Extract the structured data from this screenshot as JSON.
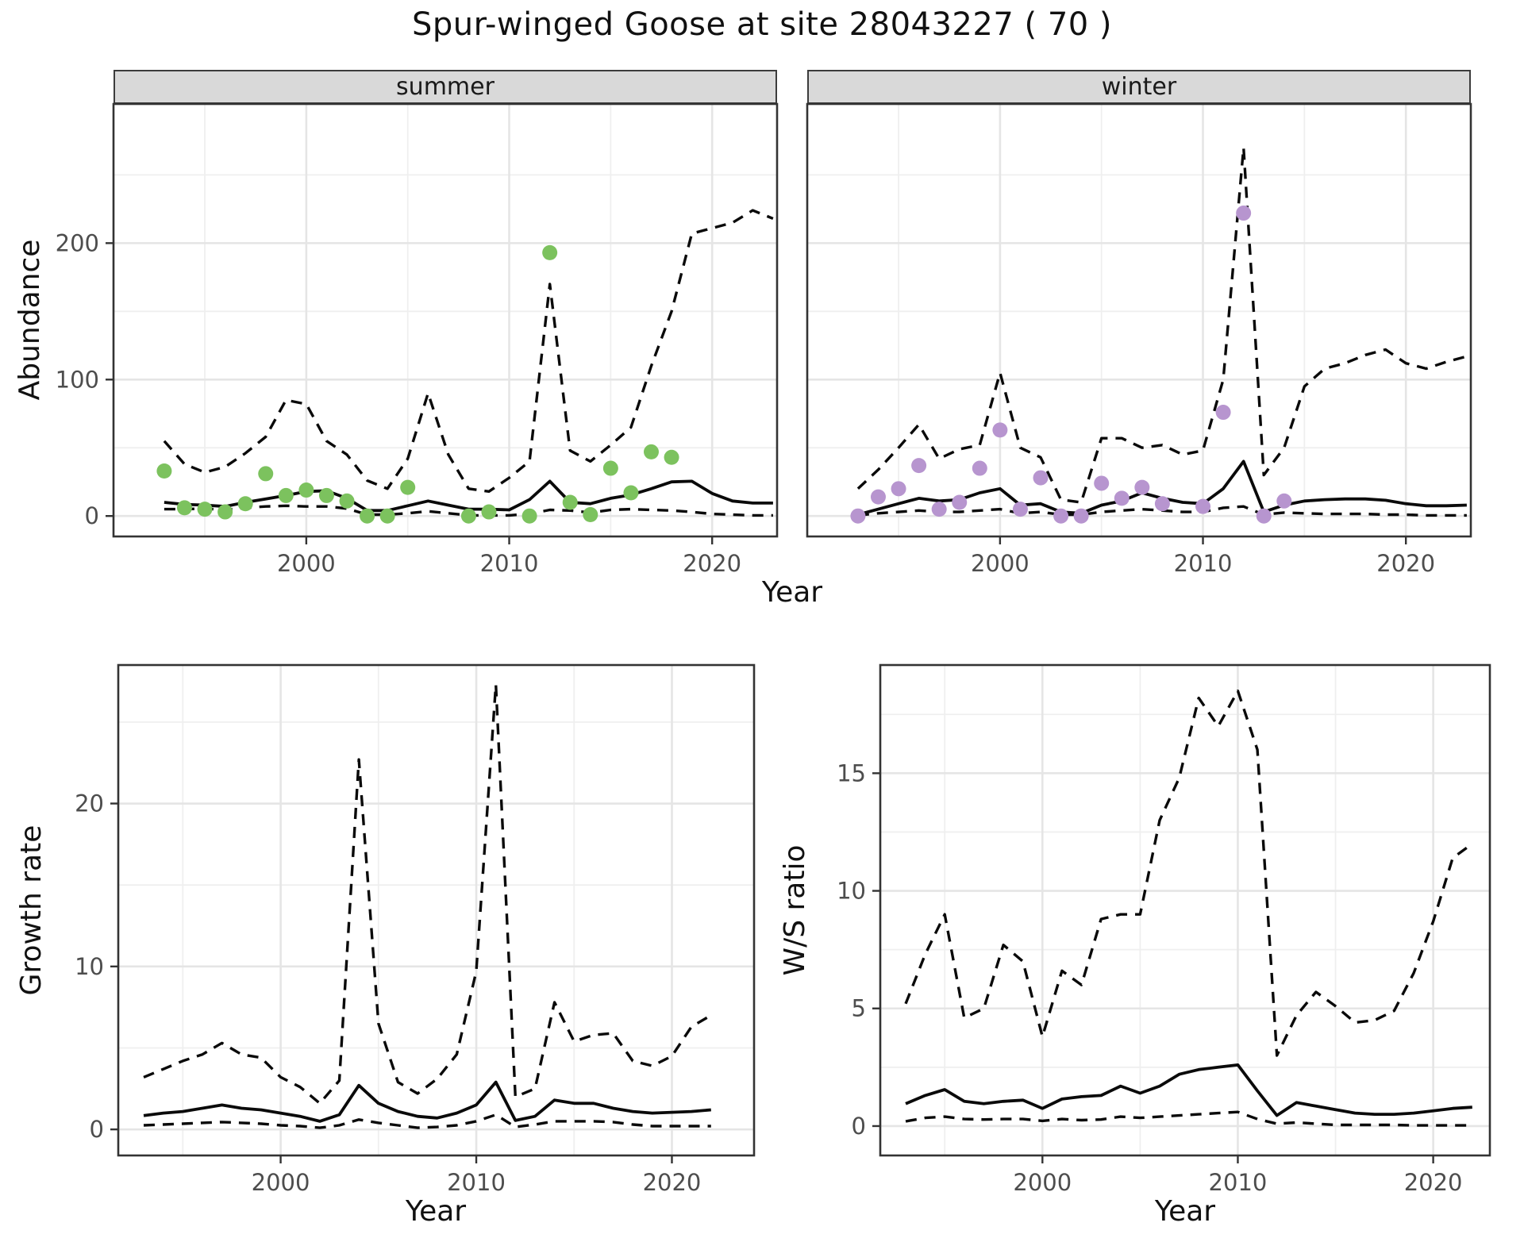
{
  "page": {
    "title": "Spur-winged Goose at site 28043227 ( 70 )"
  },
  "facets": {
    "summer": "summer",
    "winter": "winter"
  },
  "axes": {
    "abundance": "Abundance",
    "year": "Year",
    "growth_rate": "Growth rate",
    "ws_ratio": "W/S ratio"
  },
  "colors": {
    "summer_points": "#7cc25e",
    "winter_points": "#b795cf",
    "line": "#0a0a0a",
    "grid_major": "#e5e5e5",
    "grid_minor": "#efefef",
    "panel_border": "#333333",
    "strip_bg": "#d9d9d9",
    "tick_label": "#4d4d4d"
  },
  "chart_data": [
    {
      "id": "abundance-summer",
      "type": "line",
      "facet_label": "summer",
      "xlabel": "Year",
      "ylabel": "Abundance",
      "xlim": [
        1990.5,
        2023.2
      ],
      "ylim": [
        -15,
        302
      ],
      "x_ticks": [
        2000,
        2010,
        2020
      ],
      "x_minor": [
        1995,
        2005,
        2015
      ],
      "y_ticks": [
        0,
        100,
        200
      ],
      "y_minor": [
        50,
        150,
        250
      ],
      "show_y_tick_labels": true,
      "x": [
        1993,
        1994,
        1995,
        1996,
        1997,
        1998,
        1999,
        2000,
        2001,
        2002,
        2003,
        2004,
        2005,
        2006,
        2007,
        2008,
        2009,
        2010,
        2011,
        2012,
        2013,
        2014,
        2015,
        2016,
        2017,
        2018,
        2019,
        2020,
        2021,
        2022,
        2023
      ],
      "series": [
        {
          "name": "median",
          "style": "solid",
          "values": [
            10,
            8.5,
            8,
            7,
            10,
            12.5,
            15,
            18,
            18.5,
            13,
            4,
            4,
            7.5,
            11,
            8,
            5,
            5,
            4.5,
            12,
            25.5,
            10,
            9,
            13,
            15.5,
            20,
            25,
            25.5,
            16.5,
            11,
            9.5,
            9.5
          ]
        },
        {
          "name": "lower95",
          "style": "dashed",
          "values": [
            5,
            5,
            5.5,
            4.5,
            6,
            7,
            7.5,
            7,
            7,
            5.5,
            1,
            1,
            2,
            3.5,
            2,
            0.5,
            0.5,
            0.5,
            1.5,
            4.5,
            4,
            2.5,
            4.5,
            5,
            4.5,
            4,
            3,
            1.5,
            1,
            0.5,
            0.5
          ]
        },
        {
          "name": "upper95",
          "style": "dashed",
          "values": [
            55,
            38,
            32,
            36,
            46,
            58,
            85,
            82,
            55,
            45,
            26,
            20,
            42,
            90,
            45,
            20,
            18,
            28,
            40,
            170,
            48,
            40,
            52,
            65,
            110,
            150,
            207,
            211,
            215,
            224,
            218
          ]
        }
      ],
      "points": {
        "name": "observed-counts",
        "color": "#7cc25e",
        "years": [
          1993,
          1994,
          1995,
          1996,
          1997,
          1998,
          1999,
          2000,
          2001,
          2002,
          2003,
          2004,
          2005,
          2008,
          2009,
          2011,
          2012,
          2013,
          2014,
          2015,
          2016,
          2017,
          2018
        ],
        "values": [
          33,
          6,
          5,
          3,
          9,
          31,
          15,
          19,
          15,
          11,
          0,
          0,
          21,
          0,
          3,
          0,
          193,
          10,
          1,
          35,
          17,
          47,
          43
        ]
      }
    },
    {
      "id": "abundance-winter",
      "type": "line",
      "facet_label": "winter",
      "xlabel": "Year",
      "ylabel": "Abundance",
      "xlim": [
        1990.5,
        2023.2
      ],
      "ylim": [
        -15,
        302
      ],
      "x_ticks": [
        2000,
        2010,
        2020
      ],
      "x_minor": [
        1995,
        2005,
        2015
      ],
      "y_ticks": [
        0,
        100,
        200
      ],
      "y_minor": [
        50,
        150,
        250
      ],
      "show_y_tick_labels": false,
      "x": [
        1993,
        1994,
        1995,
        1996,
        1997,
        1998,
        1999,
        2000,
        2001,
        2002,
        2003,
        2004,
        2005,
        2006,
        2007,
        2008,
        2009,
        2010,
        2011,
        2012,
        2013,
        2014,
        2015,
        2016,
        2017,
        2018,
        2019,
        2020,
        2021,
        2022,
        2023
      ],
      "series": [
        {
          "name": "median",
          "style": "solid",
          "values": [
            1,
            5,
            9,
            13,
            11,
            12,
            17,
            20,
            8,
            9,
            3,
            2,
            8,
            11,
            17,
            13,
            10,
            9,
            20,
            40,
            3,
            8,
            11,
            12,
            12.5,
            12.5,
            11.5,
            9,
            7.5,
            7.5,
            8
          ]
        },
        {
          "name": "lower95",
          "style": "dashed",
          "values": [
            0.5,
            2,
            3,
            4,
            3,
            3,
            4,
            5,
            2,
            3,
            1,
            1,
            3,
            4,
            5,
            4,
            3,
            3,
            6,
            7,
            1,
            2.5,
            2,
            1.5,
            1.5,
            1.5,
            1,
            1,
            0.5,
            0.5,
            0.5
          ]
        },
        {
          "name": "upper95",
          "style": "dashed",
          "values": [
            20,
            34,
            50,
            67,
            42,
            49,
            52,
            105,
            50,
            43,
            12,
            10,
            57,
            57,
            50,
            52,
            45,
            48,
            100,
            270,
            30,
            50,
            95,
            108,
            112,
            118,
            122,
            112,
            108,
            113,
            117
          ]
        }
      ],
      "points": {
        "name": "observed-counts",
        "color": "#b795cf",
        "years": [
          1993,
          1994,
          1995,
          1996,
          1997,
          1998,
          1999,
          2000,
          2001,
          2002,
          2003,
          2004,
          2005,
          2006,
          2007,
          2008,
          2010,
          2011,
          2012,
          2013,
          2014
        ],
        "values": [
          0,
          14,
          20,
          37,
          5,
          10,
          35,
          63,
          5,
          28,
          0,
          0,
          24,
          13,
          21,
          9,
          7,
          76,
          222,
          0,
          11
        ]
      }
    },
    {
      "id": "growth-rate",
      "type": "line",
      "facet_label": "",
      "xlabel": "Year",
      "ylabel": "Growth rate",
      "xlim": [
        1991.7,
        2024.2
      ],
      "ylim": [
        -1.6,
        28.5
      ],
      "x_ticks": [
        2000,
        2010,
        2020
      ],
      "x_minor": [
        1995,
        2005,
        2015
      ],
      "y_ticks": [
        0,
        10,
        20
      ],
      "y_minor": [
        5,
        15,
        25
      ],
      "show_y_tick_labels": true,
      "x": [
        1993,
        1994,
        1995,
        1996,
        1997,
        1998,
        1999,
        2000,
        2001,
        2002,
        2003,
        2004,
        2005,
        2006,
        2007,
        2008,
        2009,
        2010,
        2011,
        2012,
        2013,
        2014,
        2015,
        2016,
        2017,
        2018,
        2019,
        2020,
        2021,
        2022
      ],
      "series": [
        {
          "name": "median",
          "style": "solid",
          "values": [
            0.85,
            1.0,
            1.1,
            1.3,
            1.5,
            1.3,
            1.2,
            1.0,
            0.8,
            0.5,
            0.9,
            2.7,
            1.6,
            1.1,
            0.8,
            0.7,
            1.0,
            1.5,
            2.9,
            0.55,
            0.8,
            1.8,
            1.6,
            1.6,
            1.3,
            1.1,
            1.0,
            1.05,
            1.1,
            1.2
          ]
        },
        {
          "name": "lower95",
          "style": "dashed",
          "values": [
            0.25,
            0.3,
            0.35,
            0.4,
            0.45,
            0.4,
            0.35,
            0.25,
            0.2,
            0.1,
            0.25,
            0.6,
            0.4,
            0.25,
            0.1,
            0.15,
            0.25,
            0.5,
            0.9,
            0.15,
            0.3,
            0.5,
            0.5,
            0.5,
            0.45,
            0.3,
            0.2,
            0.2,
            0.2,
            0.2
          ]
        },
        {
          "name": "upper95",
          "style": "dashed",
          "values": [
            3.2,
            3.7,
            4.2,
            4.6,
            5.3,
            4.6,
            4.4,
            3.2,
            2.6,
            1.6,
            3.0,
            22.7,
            6.5,
            2.9,
            2.2,
            3.1,
            4.6,
            9.7,
            27.3,
            2.0,
            2.5,
            7.8,
            5.4,
            5.8,
            5.9,
            4.2,
            3.9,
            4.5,
            6.3,
            7.0
          ]
        }
      ],
      "points": null
    },
    {
      "id": "ws-ratio",
      "type": "line",
      "facet_label": "",
      "xlabel": "Year",
      "ylabel": "W/S ratio",
      "xlim": [
        1991.7,
        2022.9
      ],
      "ylim": [
        -1.25,
        19.6
      ],
      "x_ticks": [
        2000,
        2010,
        2020
      ],
      "x_minor": [
        1995,
        2005,
        2015
      ],
      "y_ticks": [
        0,
        5,
        10,
        15
      ],
      "y_minor": [
        2.5,
        7.5,
        12.5,
        17.5
      ],
      "show_y_tick_labels": true,
      "x": [
        1993,
        1994,
        1995,
        1996,
        1997,
        1998,
        1999,
        2000,
        2001,
        2002,
        2003,
        2004,
        2005,
        2006,
        2007,
        2008,
        2009,
        2010,
        2011,
        2012,
        2013,
        2014,
        2015,
        2016,
        2017,
        2018,
        2019,
        2020,
        2021,
        2022
      ],
      "series": [
        {
          "name": "median",
          "style": "solid",
          "values": [
            0.95,
            1.3,
            1.55,
            1.05,
            0.95,
            1.05,
            1.1,
            0.75,
            1.15,
            1.25,
            1.3,
            1.7,
            1.4,
            1.7,
            2.2,
            2.4,
            2.5,
            2.6,
            1.5,
            0.45,
            1.0,
            0.85,
            0.7,
            0.55,
            0.5,
            0.5,
            0.55,
            0.65,
            0.75,
            0.8
          ]
        },
        {
          "name": "lower95",
          "style": "dashed",
          "values": [
            0.2,
            0.35,
            0.4,
            0.3,
            0.28,
            0.3,
            0.3,
            0.22,
            0.3,
            0.25,
            0.28,
            0.4,
            0.35,
            0.4,
            0.45,
            0.5,
            0.55,
            0.6,
            0.3,
            0.1,
            0.15,
            0.1,
            0.05,
            0.05,
            0.05,
            0.05,
            0.03,
            0.03,
            0.03,
            0.03
          ]
        },
        {
          "name": "upper95",
          "style": "dashed",
          "values": [
            5.2,
            7.3,
            9.0,
            4.6,
            5.0,
            7.7,
            7.0,
            3.8,
            6.6,
            6.0,
            8.8,
            9.0,
            9.0,
            13.0,
            14.8,
            18.2,
            17.0,
            18.5,
            16.0,
            3.0,
            4.7,
            5.7,
            5.1,
            4.4,
            4.5,
            4.9,
            6.5,
            8.7,
            11.4,
            12.0
          ]
        }
      ],
      "points": null
    }
  ]
}
